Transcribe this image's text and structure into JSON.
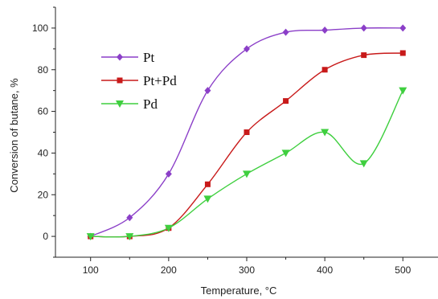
{
  "chart_data": {
    "type": "line",
    "xlabel": "Temperature, °C",
    "ylabel": "Conversion of butane, %",
    "xlim": [
      55,
      545
    ],
    "ylim": [
      -10,
      110
    ],
    "xticks": [
      100,
      200,
      300,
      400,
      500
    ],
    "yticks": [
      0,
      20,
      40,
      60,
      80,
      100
    ],
    "x": [
      100,
      150,
      200,
      250,
      300,
      350,
      400,
      450,
      500
    ],
    "legend_position": "top-left",
    "grid": false,
    "series": [
      {
        "name": "Pt",
        "color": "#8b3fc8",
        "marker": "diamond",
        "values": [
          0,
          9,
          30,
          70,
          90,
          98,
          99,
          100,
          100
        ]
      },
      {
        "name": "Pt+Pd",
        "color": "#c81a1a",
        "marker": "square",
        "values": [
          0,
          0,
          4,
          25,
          50,
          65,
          80,
          87,
          88
        ]
      },
      {
        "name": "Pd",
        "color": "#3fcf3f",
        "marker": "triangle-down",
        "values": [
          0,
          0,
          4,
          18,
          30,
          40,
          50,
          35,
          70
        ]
      }
    ]
  }
}
